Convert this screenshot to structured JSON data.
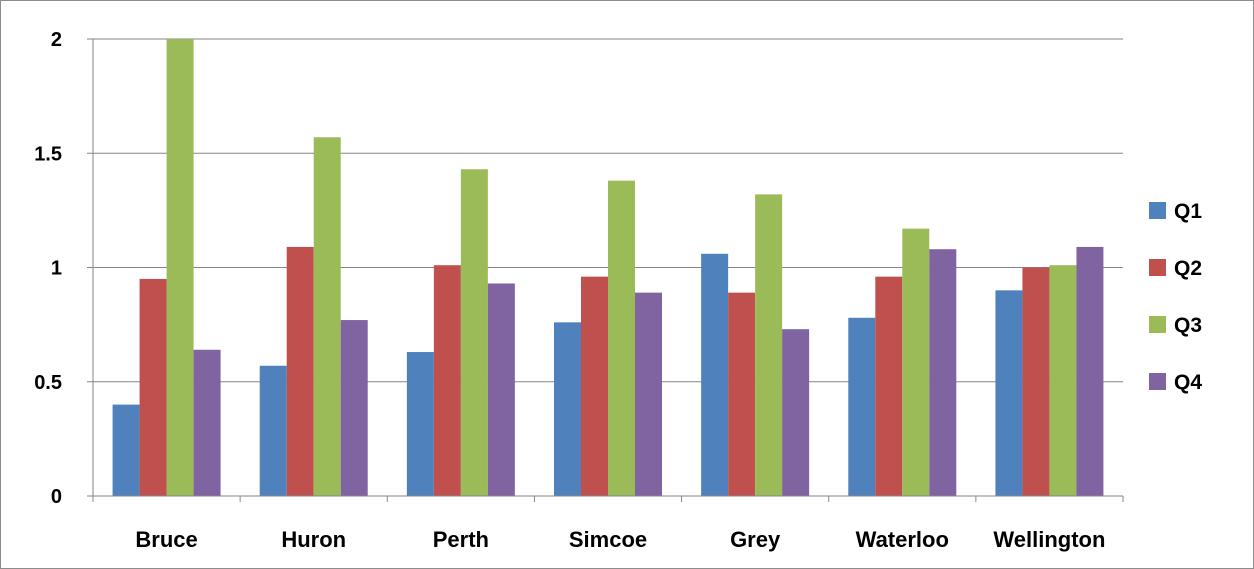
{
  "chart_data": {
    "type": "bar",
    "categories": [
      "Bruce",
      "Huron",
      "Perth",
      "Simcoe",
      "Grey",
      "Waterloo",
      "Wellington"
    ],
    "series": [
      {
        "name": "Q1",
        "color": "#4F81BD",
        "values": [
          0.4,
          0.57,
          0.63,
          0.76,
          1.06,
          0.78,
          0.9
        ]
      },
      {
        "name": "Q2",
        "color": "#C0504D",
        "values": [
          0.95,
          1.09,
          1.01,
          0.96,
          0.89,
          0.96,
          1.0
        ]
      },
      {
        "name": "Q3",
        "color": "#9BBB59",
        "values": [
          2.0,
          1.57,
          1.43,
          1.38,
          1.32,
          1.17,
          1.01
        ]
      },
      {
        "name": "Q4",
        "color": "#8064A2",
        "values": [
          0.64,
          0.77,
          0.93,
          0.89,
          0.73,
          1.08,
          1.09
        ]
      }
    ],
    "ylim": [
      0,
      2
    ],
    "yticks": [
      "0",
      "0.5",
      "1",
      "1.5",
      "2"
    ],
    "grid": true,
    "legend": "right"
  }
}
